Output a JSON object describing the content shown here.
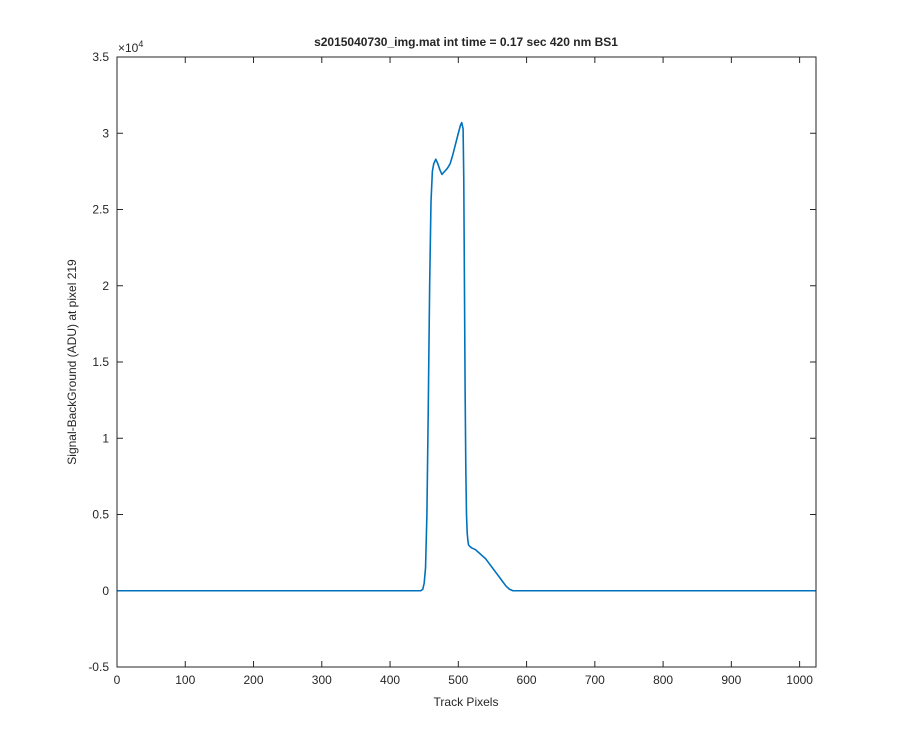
{
  "chart_data": {
    "type": "line",
    "title": "s2015040730_img.mat int time = 0.17 sec  420 nm BS1",
    "xlabel": "Track Pixels",
    "ylabel": "Signal-BackGround (ADU) at pixel 219",
    "y_exponent_label": "×10",
    "y_exponent": "4",
    "xlim": [
      0,
      1024
    ],
    "ylim": [
      -0.5,
      3.5
    ],
    "y_multiplier": 10000,
    "xticks": [
      0,
      100,
      200,
      300,
      400,
      500,
      600,
      700,
      800,
      900,
      1000
    ],
    "xtick_labels": [
      "0",
      "100",
      "200",
      "300",
      "400",
      "500",
      "600",
      "700",
      "800",
      "900",
      "1000"
    ],
    "yticks": [
      -0.5,
      0,
      0.5,
      1,
      1.5,
      2,
      2.5,
      3,
      3.5
    ],
    "ytick_labels": [
      "-0.5",
      "0",
      "0.5",
      "1",
      "1.5",
      "2",
      "2.5",
      "3",
      "3.5"
    ],
    "grid": false,
    "box": true,
    "line_color": "#0072bd",
    "series": [
      {
        "x": [
          0,
          100,
          200,
          300,
          400,
          445,
          448,
          450,
          452,
          454,
          456,
          458,
          460,
          462,
          464,
          467,
          470,
          473,
          476,
          480,
          484,
          488,
          492,
          496,
          500,
          503,
          505,
          507,
          508,
          509,
          510,
          511,
          512,
          513,
          514,
          515,
          517,
          520,
          525,
          530,
          535,
          540,
          545,
          550,
          555,
          560,
          565,
          570,
          575,
          580,
          585,
          590,
          595,
          600,
          700,
          800,
          900,
          1024
        ],
        "y": [
          0,
          0,
          0,
          0,
          0,
          0,
          0.01,
          0.05,
          0.15,
          0.5,
          1.2,
          2.0,
          2.55,
          2.75,
          2.8,
          2.83,
          2.8,
          2.76,
          2.73,
          2.75,
          2.77,
          2.8,
          2.86,
          2.93,
          3.0,
          3.05,
          3.07,
          3.03,
          2.7,
          2.0,
          1.3,
          0.8,
          0.5,
          0.38,
          0.33,
          0.3,
          0.29,
          0.28,
          0.27,
          0.25,
          0.23,
          0.21,
          0.18,
          0.15,
          0.12,
          0.09,
          0.06,
          0.03,
          0.01,
          0,
          0,
          0,
          0,
          0,
          0,
          0,
          0,
          0
        ]
      }
    ]
  }
}
